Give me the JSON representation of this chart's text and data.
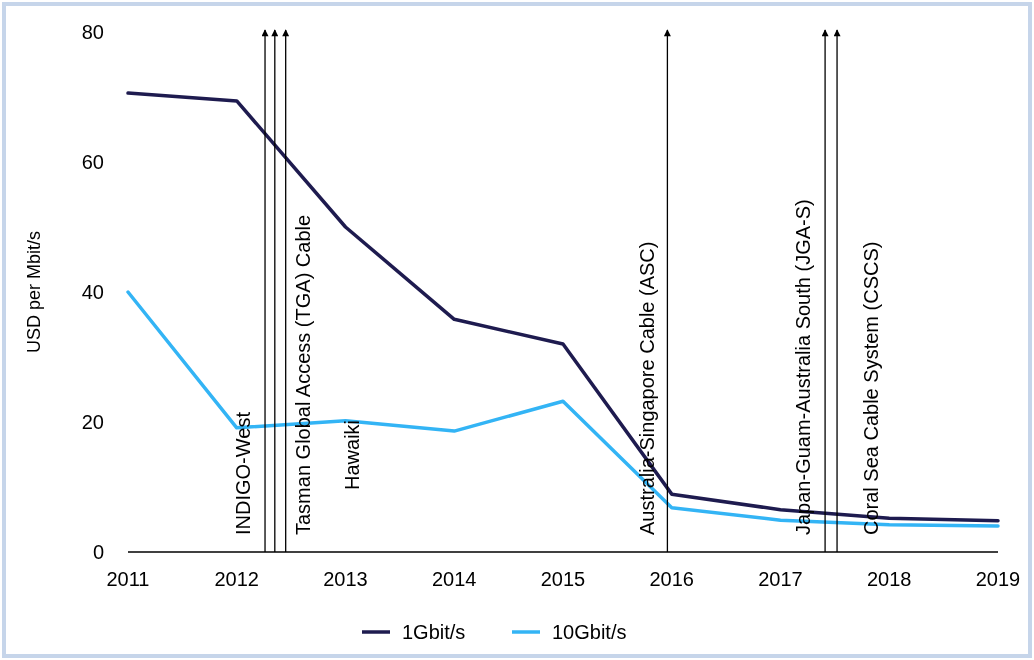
{
  "chart_data": {
    "type": "line",
    "ylabel": "USD per Mbit/s",
    "x": [
      2011,
      2012,
      2013,
      2014,
      2015,
      2016,
      2017,
      2018,
      2019
    ],
    "series": [
      {
        "name": "1Gbit/s",
        "color": "#1e1b4f",
        "values": [
          70.6,
          69.4,
          50,
          35.8,
          32,
          8.9,
          6.5,
          5.2,
          4.8
        ]
      },
      {
        "name": "10Gbit/s",
        "color": "#33b4f5",
        "values": [
          40,
          19.1,
          20.2,
          18.6,
          23.2,
          6.8,
          4.9,
          4.2,
          4.0
        ]
      }
    ],
    "xlim": [
      2011,
      2019
    ],
    "xticks": [
      2011,
      2012,
      2013,
      2014,
      2015,
      2016,
      2017,
      2018,
      2019
    ],
    "ylim": [
      0,
      80
    ],
    "yticks": [
      0,
      20,
      40,
      60,
      80
    ],
    "ref_lines": [
      {
        "axis": "x",
        "value": 2012.26,
        "label": "INDIGO-West",
        "color": "#000000"
      },
      {
        "axis": "x",
        "value": 2012.35,
        "label": "Tasman Global Access (TGA) Cable",
        "color": "#000000"
      },
      {
        "axis": "x",
        "value": 2012.45,
        "label": "Hawaiki",
        "color": "#000000"
      },
      {
        "axis": "x",
        "value": 2015.96,
        "label": "Australia-Singapore Cable (ASC)",
        "color": "#000000"
      },
      {
        "axis": "x",
        "value": 2017.41,
        "label": "Japan-Guam-Australia South (JGA-S)",
        "color": "#000000"
      },
      {
        "axis": "x",
        "value": 2017.52,
        "label": "Coral Sea Cable System (CSCS)",
        "color": "#000000"
      }
    ],
    "grid": false,
    "legend": "bottom",
    "marker": "none",
    "line_style": "solid"
  }
}
